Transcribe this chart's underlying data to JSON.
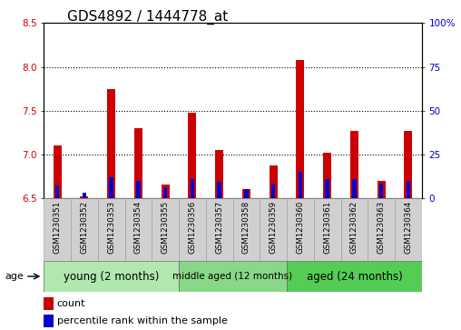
{
  "title": "GDS4892 / 1444778_at",
  "samples": [
    "GSM1230351",
    "GSM1230352",
    "GSM1230353",
    "GSM1230354",
    "GSM1230355",
    "GSM1230356",
    "GSM1230357",
    "GSM1230358",
    "GSM1230359",
    "GSM1230360",
    "GSM1230361",
    "GSM1230362",
    "GSM1230363",
    "GSM1230364"
  ],
  "count_values": [
    7.1,
    6.52,
    7.75,
    7.3,
    6.65,
    7.47,
    7.05,
    6.6,
    6.87,
    8.08,
    7.02,
    7.27,
    6.7,
    7.27
  ],
  "percentile_values": [
    7.0,
    3.0,
    12.0,
    10.0,
    6.0,
    11.0,
    9.0,
    5.0,
    8.0,
    15.0,
    11.0,
    11.0,
    8.0,
    10.0
  ],
  "baseline": 6.5,
  "ylim_left": [
    6.5,
    8.5
  ],
  "ylim_right": [
    0,
    100
  ],
  "yticks_left": [
    6.5,
    7.0,
    7.5,
    8.0,
    8.5
  ],
  "yticks_right": [
    0,
    25,
    50,
    75,
    100
  ],
  "ytick_labels_right": [
    "0",
    "25",
    "50",
    "75",
    "100%"
  ],
  "grid_values": [
    7.0,
    7.5,
    8.0
  ],
  "bar_color": "#cc0000",
  "percentile_color": "#0000cc",
  "groups": [
    {
      "label": "young (2 months)",
      "start": 0,
      "end": 5
    },
    {
      "label": "middle aged (12 months)",
      "start": 5,
      "end": 9
    },
    {
      "label": "aged (24 months)",
      "start": 9,
      "end": 14
    }
  ],
  "group_bg_colors": [
    "#b0e8b0",
    "#88d888",
    "#55cc55"
  ],
  "red_bar_width": 0.3,
  "blue_bar_width": 0.15,
  "title_fontsize": 11,
  "tick_fontsize": 7.5,
  "legend_fontsize": 8,
  "age_label": "age",
  "legend_count": "count",
  "legend_percentile": "percentile rank within the sample",
  "xticklabel_bg": "#d0d0d0",
  "plot_bg": "#ffffff",
  "spine_color": "#000000",
  "xlim": [
    -0.5,
    13.5
  ]
}
